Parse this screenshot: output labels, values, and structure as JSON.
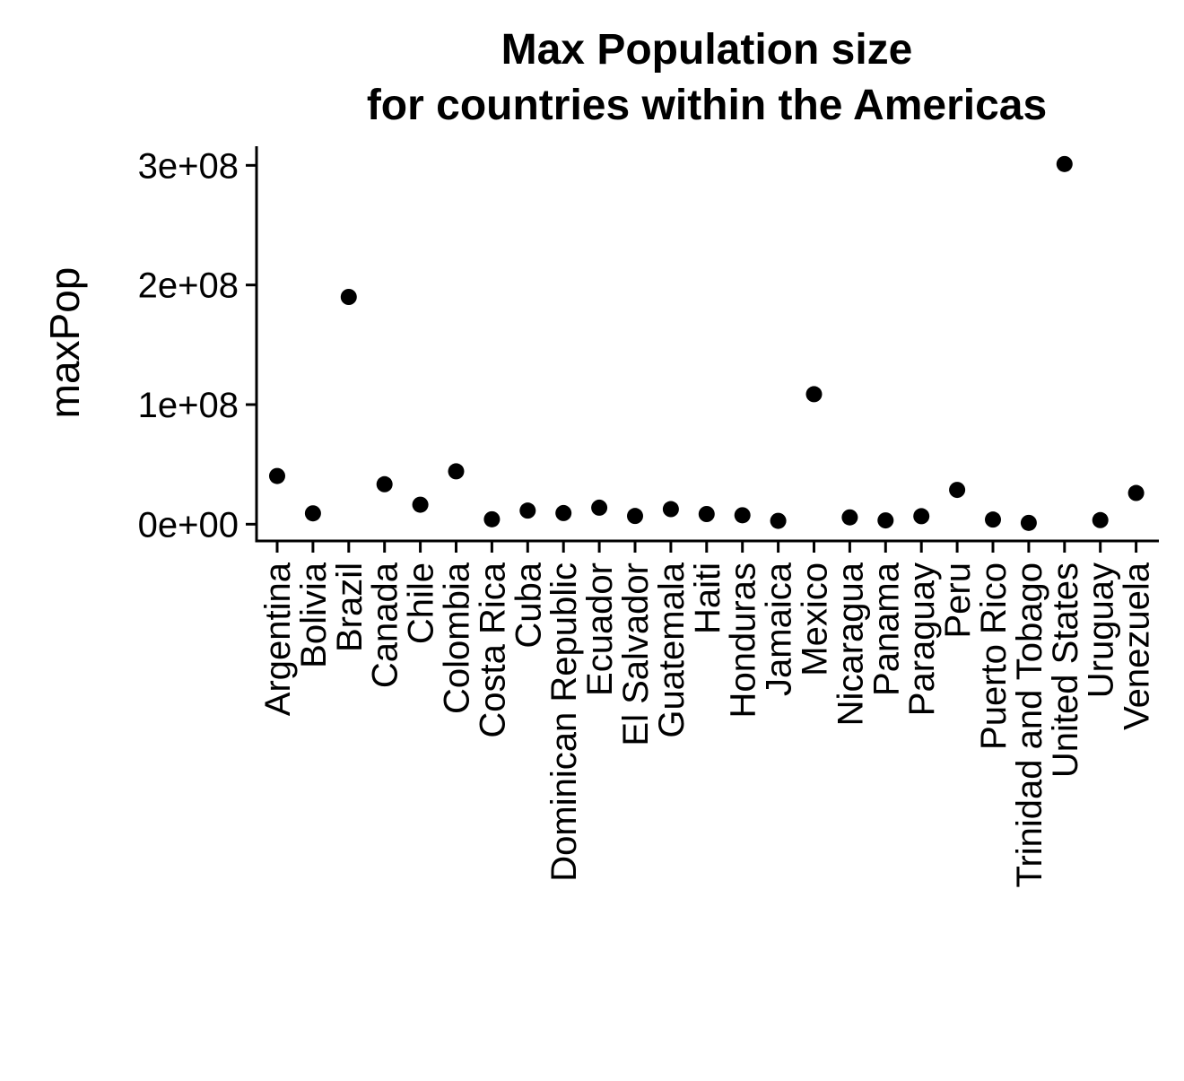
{
  "chart_data": {
    "type": "scatter",
    "title_lines": [
      "Max Population size",
      "for countries within the Americas"
    ],
    "xlabel": "",
    "ylabel": "maxPop",
    "y_ticks": [
      0,
      100000000,
      200000000,
      300000000
    ],
    "y_tick_labels": [
      "0e+00",
      "1e+08",
      "2e+08",
      "3e+08"
    ],
    "ylim": [
      -14000000,
      316000000
    ],
    "grid": false,
    "legend": "none",
    "point_color": "#000000",
    "categories": [
      "Argentina",
      "Bolivia",
      "Brazil",
      "Canada",
      "Chile",
      "Colombia",
      "Costa Rica",
      "Cuba",
      "Dominican Republic",
      "Ecuador",
      "El Salvador",
      "Guatemala",
      "Haiti",
      "Honduras",
      "Jamaica",
      "Mexico",
      "Nicaragua",
      "Panama",
      "Paraguay",
      "Peru",
      "Puerto Rico",
      "Trinidad and Tobago",
      "United States",
      "Uruguay",
      "Venezuela"
    ],
    "values": [
      40300000,
      9100000,
      190000000,
      33400000,
      16300000,
      44200000,
      4100000,
      11400000,
      9300000,
      13800000,
      6900000,
      12600000,
      8500000,
      7500000,
      2800000,
      108700000,
      5700000,
      3200000,
      6700000,
      28700000,
      3900000,
      1100000,
      301100000,
      3400000,
      26100000
    ]
  }
}
